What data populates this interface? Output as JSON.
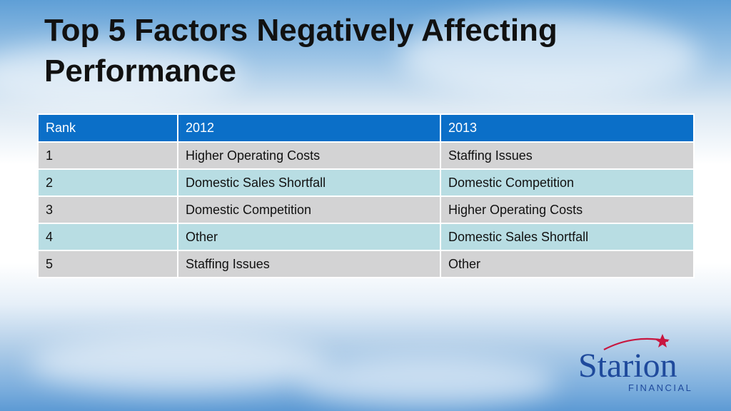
{
  "slide": {
    "title": "Top 5 Factors Negatively Affecting Performance"
  },
  "table": {
    "headers": [
      "Rank",
      "2012",
      "2013"
    ],
    "rows": [
      [
        "1",
        "Higher Operating Costs",
        "Staffing Issues"
      ],
      [
        "2",
        "Domestic Sales Shortfall",
        "Domestic Competition"
      ],
      [
        "3",
        "Domestic Competition",
        "Higher Operating Costs"
      ],
      [
        "4",
        "Other",
        "Domestic Sales Shortfall"
      ],
      [
        "5",
        "Staffing Issues",
        "Other"
      ]
    ]
  },
  "logo": {
    "name": "Starion",
    "sub": "FINANCIAL",
    "text_color": "#1f4a9c",
    "accent_color": "#c8163f"
  },
  "colors": {
    "header_bg": "#0b6fc8",
    "row_gray": "#d3d3d4",
    "row_teal": "#b8dde3"
  }
}
